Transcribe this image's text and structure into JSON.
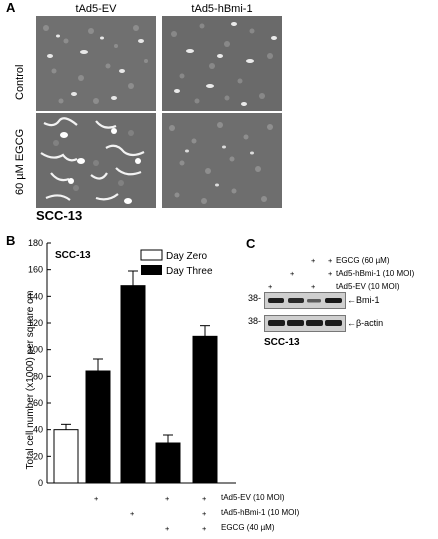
{
  "panel_a": {
    "label": "A",
    "columns": [
      "tAd5-EV",
      "tAd5-hBmi-1"
    ],
    "rows": [
      "Control",
      "60 µM EGCG"
    ],
    "cell_line": "SCC-13"
  },
  "panel_b": {
    "label": "B",
    "title": "SCC-13",
    "treatment_labels": [
      "tAd5-EV (10 MOI)",
      "tAd5-hBmi-1 (10 MOI)",
      "EGCG (40 µM)"
    ],
    "treatment_matrix": [
      [
        "",
        "+",
        "",
        "+",
        "+"
      ],
      [
        "",
        "",
        "+",
        "",
        "+"
      ],
      [
        "",
        "",
        "",
        "+",
        "+"
      ]
    ]
  },
  "panel_c": {
    "label": "C",
    "treatment_labels": [
      "EGCG (60 µM)",
      "tAd5-hBmi-1 (10 MOI)",
      "tAd5-EV (10 MOI)"
    ],
    "treatment_matrix": [
      [
        "",
        "",
        "+",
        "+"
      ],
      [
        "",
        "+",
        "",
        "+"
      ],
      [
        "+",
        "",
        "+",
        ""
      ]
    ],
    "bands": [
      {
        "marker": "38-",
        "label": "←Bmi-1"
      },
      {
        "marker": "38-",
        "label": "←β-actin"
      }
    ],
    "cell_line": "SCC-13"
  },
  "chart_data": {
    "type": "bar",
    "ylabel": "Total cell number (x1000) per square cm",
    "ylim": [
      0,
      180
    ],
    "yticks": [
      0,
      20,
      40,
      60,
      80,
      100,
      120,
      140,
      160,
      180
    ],
    "legend": [
      "Day Zero",
      "Day Three"
    ],
    "legend_position": "top-right",
    "bars": [
      {
        "series": "Day Zero",
        "value": 40,
        "error": 4
      },
      {
        "series": "Day Three",
        "value": 84,
        "error": 9
      },
      {
        "series": "Day Three",
        "value": 148,
        "error": 11
      },
      {
        "series": "Day Three",
        "value": 30,
        "error": 6
      },
      {
        "series": "Day Three",
        "value": 110,
        "error": 8
      }
    ]
  }
}
